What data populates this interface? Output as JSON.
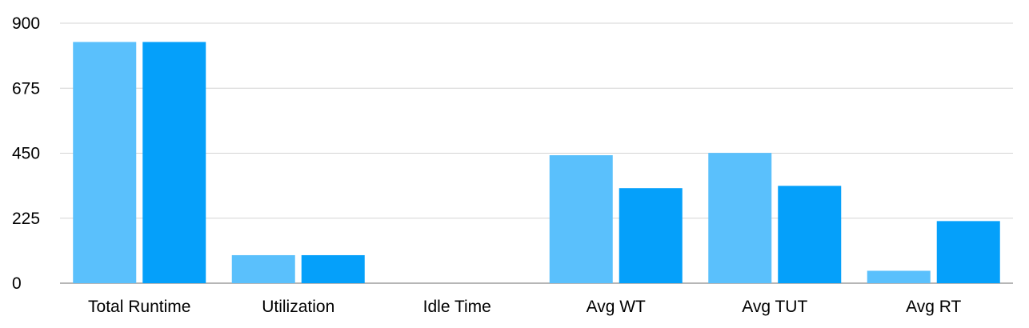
{
  "chart_data": {
    "type": "bar",
    "title": "",
    "xlabel": "",
    "ylabel": "",
    "categories": [
      "Total Runtime",
      "Utilization",
      "Idle Time",
      "Avg WT",
      "Avg TUT",
      "Avg RT"
    ],
    "series": [
      {
        "color": "#5ac0fc",
        "values": [
          835,
          97,
          0,
          443,
          451,
          43
        ]
      },
      {
        "color": "#05a0fa",
        "values": [
          835,
          97,
          0,
          329,
          337,
          215
        ]
      }
    ],
    "ylim": [
      0,
      900
    ],
    "yticks": [
      "0",
      "225",
      "450",
      "675",
      "900"
    ],
    "ytick_values": [
      0,
      225,
      450,
      675,
      900
    ],
    "grid": true,
    "legend": "none"
  }
}
